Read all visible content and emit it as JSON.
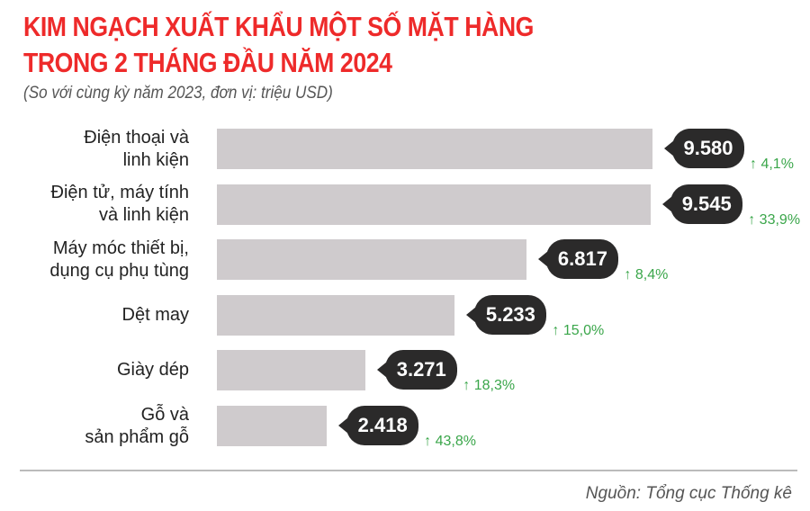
{
  "chart_data": {
    "type": "bar",
    "orientation": "horizontal",
    "title": "KIM NGẠCH XUẤT KHẨU MỘT SỐ MẶT HÀNG TRONG 2 THÁNG ĐẦU NĂM 2024",
    "title_lines": [
      "KIM NGẠCH XUẤT KHẨU MỘT SỐ MẶT HÀNG",
      "TRONG 2 THÁNG ĐẦU NĂM 2024"
    ],
    "subtitle": "(So với cùng kỳ năm 2023, đơn vị: triệu USD)",
    "categories": [
      [
        "Điện thoại và",
        "linh kiện"
      ],
      [
        "Điện tử, máy tính",
        "và linh kiện"
      ],
      [
        "Máy móc thiết bị,",
        "dụng cụ phụ tùng"
      ],
      [
        "Dệt may"
      ],
      [
        "Giày dép"
      ],
      [
        "Gỗ và",
        "sản phẩm gỗ"
      ]
    ],
    "values": [
      9580,
      9545,
      6817,
      5233,
      3271,
      2418
    ],
    "value_labels": [
      "9.580",
      "9.545",
      "6.817",
      "5.233",
      "3.271",
      "2.418"
    ],
    "change_labels": [
      "4,1%",
      "33,9%",
      "8,4%",
      "15,0%",
      "18,3%",
      "43,8%"
    ],
    "change_direction": "up",
    "colors": {
      "title": "#ee2a2a",
      "bar": "#cfcbcd",
      "bubble": "#2b2a2a",
      "change": "#3aa64a"
    },
    "xlim": [
      0,
      9580
    ],
    "grid": false
  },
  "source": "Nguồn: Tổng cục Thống kê"
}
